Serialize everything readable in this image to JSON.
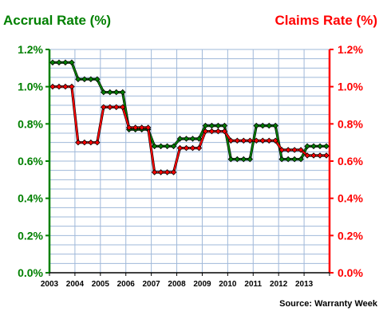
{
  "chart_data": {
    "type": "line",
    "title_left": "Accrual Rate (%)",
    "title_right": "Claims Rate (%)",
    "source": "Source: Warranty Week",
    "x_labels": [
      "2003",
      "2004",
      "2005",
      "2006",
      "2007",
      "2008",
      "2009",
      "2010",
      "2011",
      "2012",
      "2013"
    ],
    "ylim": [
      0,
      1.2
    ],
    "y_ticks": [
      "0.0%",
      "0.2%",
      "0.4%",
      "0.6%",
      "0.8%",
      "1.0%",
      "1.2%"
    ],
    "grid": true,
    "quarter_index": [
      1,
      2,
      3,
      4,
      5,
      6,
      7,
      8,
      9,
      10,
      11,
      12,
      13,
      14,
      15,
      16,
      17,
      18,
      19,
      20,
      21,
      22,
      23,
      24,
      25,
      26,
      27,
      28,
      29,
      30,
      31,
      32,
      33,
      34,
      35,
      36,
      37,
      38,
      39,
      40,
      41,
      42,
      43,
      44
    ],
    "series": [
      {
        "name": "Accrual Rate (%)",
        "axis": "left",
        "color": "#008000",
        "values": [
          1.13,
          1.13,
          1.13,
          1.13,
          1.04,
          1.04,
          1.04,
          1.04,
          0.97,
          0.97,
          0.97,
          0.97,
          0.77,
          0.77,
          0.77,
          0.77,
          0.68,
          0.68,
          0.68,
          0.68,
          0.72,
          0.72,
          0.72,
          0.72,
          0.79,
          0.79,
          0.79,
          0.79,
          0.61,
          0.61,
          0.61,
          0.61,
          0.79,
          0.79,
          0.79,
          0.79,
          0.61,
          0.61,
          0.61,
          0.61,
          0.68,
          0.68,
          0.68,
          0.68
        ]
      },
      {
        "name": "Claims Rate (%)",
        "axis": "right",
        "color": "#ff0000",
        "values": [
          1.0,
          1.0,
          1.0,
          1.0,
          0.7,
          0.7,
          0.7,
          0.7,
          0.89,
          0.89,
          0.89,
          0.89,
          0.78,
          0.78,
          0.78,
          0.78,
          0.54,
          0.54,
          0.54,
          0.54,
          0.67,
          0.67,
          0.67,
          0.67,
          0.76,
          0.76,
          0.76,
          0.76,
          0.71,
          0.71,
          0.71,
          0.71,
          0.71,
          0.71,
          0.71,
          0.71,
          0.66,
          0.66,
          0.66,
          0.66,
          0.63,
          0.63,
          0.63,
          0.63
        ]
      }
    ],
    "colors": {
      "left_axis": "#008000",
      "right_axis": "#ff0000"
    }
  }
}
